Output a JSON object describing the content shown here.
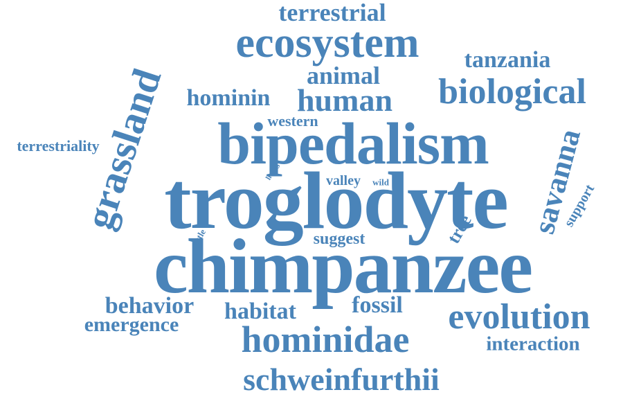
{
  "palette": {
    "word": "#4a84b9",
    "background": "#ffffff"
  },
  "words": {
    "troglodyte": "troglodyte",
    "chimpanzee": "chimpanzee",
    "bipedalism": "bipedalism",
    "ecosystem": "ecosystem",
    "hominidae": "hominidae",
    "evolution": "evolution",
    "biological": "biological",
    "schweinfurthii": "schweinfurthii",
    "human": "human",
    "grassland": "grassland",
    "savanna": "savanna",
    "terrestrial": "terrestrial",
    "animal": "animal",
    "tanzania": "tanzania",
    "hominin": "hominin",
    "behavior": "behavior",
    "habitat": "habitat",
    "fossil": "fossil",
    "emergence": "emergence",
    "interaction": "interaction",
    "terrestriality": "terrestriality",
    "western": "western",
    "suggest": "suggest",
    "valley": "valley",
    "wild": "wild",
    "living": "living",
    "cattle": "cattle",
    "tree": "tree",
    "support": "support"
  }
}
